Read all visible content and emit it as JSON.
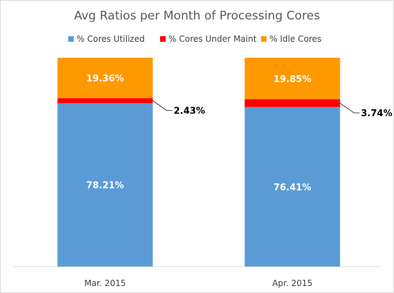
{
  "chart_data": {
    "type": "bar",
    "stacked": true,
    "title": "Avg Ratios per Month of Processing Cores",
    "categories": [
      "Mar. 2015",
      "Apr. 2015"
    ],
    "series": [
      {
        "name": "% Cores Utilized",
        "color": "#5b9bd5",
        "values": [
          78.21,
          76.41
        ],
        "labels": [
          "78.21%",
          "76.41%"
        ]
      },
      {
        "name": "% Cores Under Maint",
        "color": "#ff0000",
        "values": [
          2.43,
          3.74
        ],
        "labels": [
          "2.43%",
          "3.74%"
        ]
      },
      {
        "name": "% Idle Cores",
        "color": "#ff9900",
        "values": [
          19.36,
          19.85
        ],
        "labels": [
          "19.36%",
          "19.85%"
        ]
      }
    ],
    "ylim": [
      0,
      100
    ],
    "legend_position": "top",
    "grid": false
  }
}
